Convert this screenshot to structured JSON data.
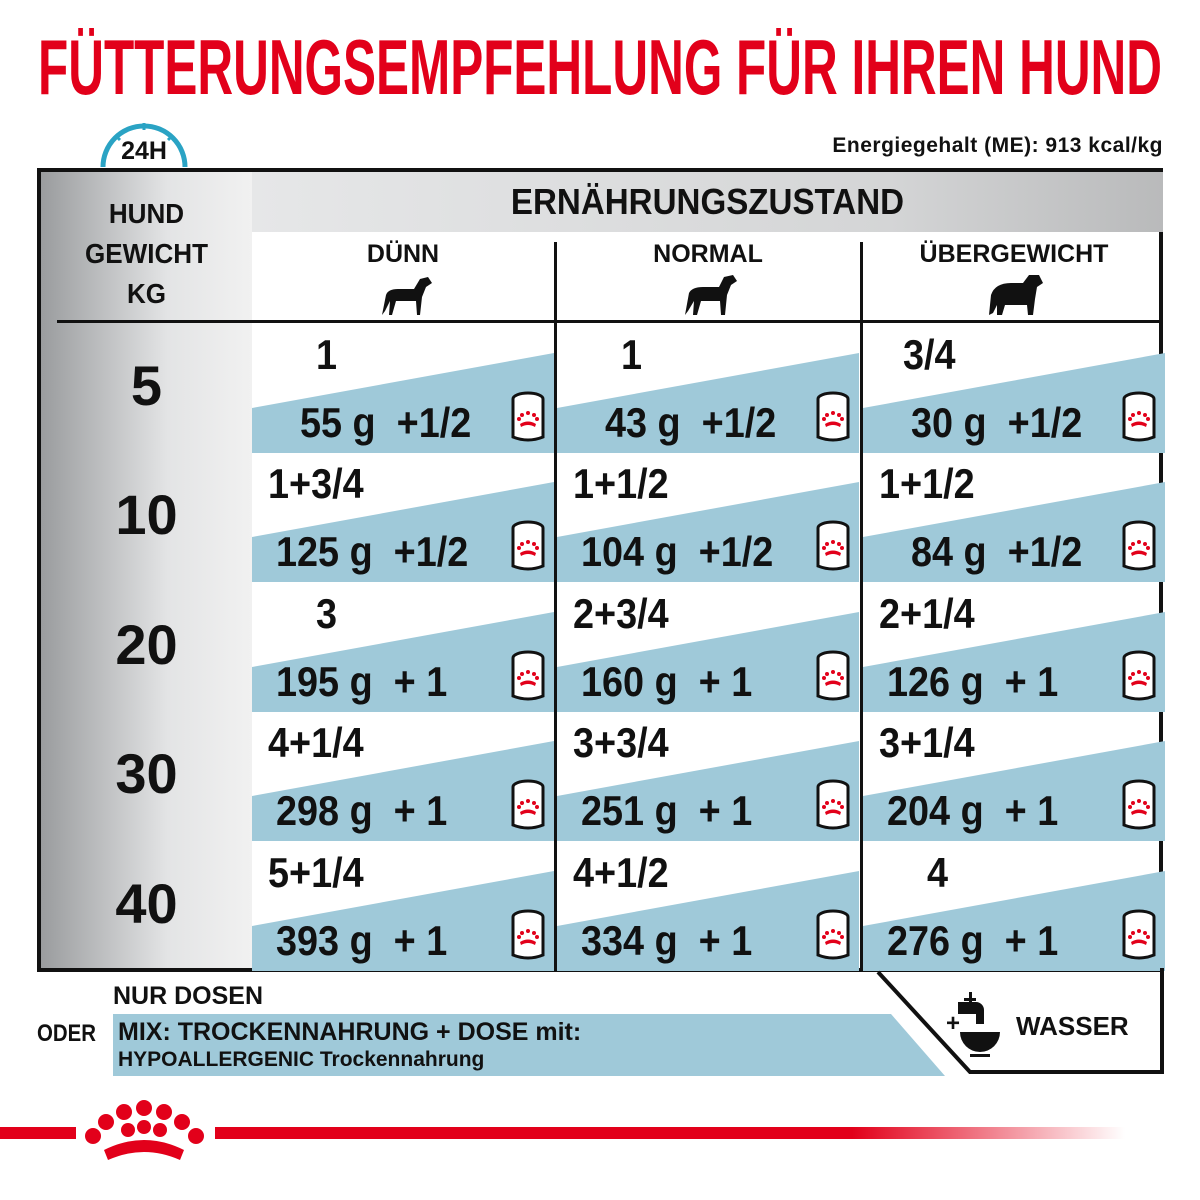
{
  "title": "FÜTTERUNGSEMPFEHLUNG FÜR IHREN HUND",
  "clock_label": "24H",
  "energy": "Energiegehalt (ME): 913 kcal/kg",
  "table": {
    "left_header": [
      "HUND",
      "GEWICHT",
      "KG"
    ],
    "group_header": "ERNÄHRUNGSZUSTAND",
    "columns": [
      "DÜNN",
      "NORMAL",
      "ÜBERGEWICHT"
    ],
    "rows": [
      {
        "kg": "5",
        "cells": [
          {
            "dry": "1",
            "wet": "55 g",
            "cans": "+1/2"
          },
          {
            "dry": "1",
            "wet": "43 g",
            "cans": "+1/2"
          },
          {
            "dry": "3/4",
            "wet": "30 g",
            "cans": "+1/2"
          }
        ]
      },
      {
        "kg": "10",
        "cells": [
          {
            "dry": "1+3/4",
            "wet": "125 g",
            "cans": "+1/2"
          },
          {
            "dry": "1+1/2",
            "wet": "104 g",
            "cans": "+1/2"
          },
          {
            "dry": "1+1/2",
            "wet": "84 g",
            "cans": "+1/2"
          }
        ]
      },
      {
        "kg": "20",
        "cells": [
          {
            "dry": "3",
            "wet": "195 g",
            "cans": "+ 1"
          },
          {
            "dry": "2+3/4",
            "wet": "160 g",
            "cans": "+ 1"
          },
          {
            "dry": "2+1/4",
            "wet": "126 g",
            "cans": "+ 1"
          }
        ]
      },
      {
        "kg": "30",
        "cells": [
          {
            "dry": "4+1/4",
            "wet": "298 g",
            "cans": "+ 1"
          },
          {
            "dry": "3+3/4",
            "wet": "251 g",
            "cans": "+ 1"
          },
          {
            "dry": "3+1/4",
            "wet": "204 g",
            "cans": "+ 1"
          }
        ]
      },
      {
        "kg": "40",
        "cells": [
          {
            "dry": "5+1/4",
            "wet": "393 g",
            "cans": "+ 1"
          },
          {
            "dry": "4+1/2",
            "wet": "334 g",
            "cans": "+ 1"
          },
          {
            "dry": "4",
            "wet": "276 g",
            "cans": "+ 1"
          }
        ]
      }
    ]
  },
  "footer": {
    "only_cans": "NUR DOSEN",
    "or": "ODER",
    "mix_line1": "MIX: TROCKENNAHRUNG + DOSE mit:",
    "mix_line2": "HYPOALLERGENIC Trockennahrung",
    "water_plus": "+",
    "water": "WASSER"
  },
  "colors": {
    "brand_red": "#e2001a",
    "band_blue": "#9fc9d9",
    "clock_blue": "#2aa3c4"
  },
  "icons": [
    "clock-24h-icon",
    "dog-thin-icon",
    "dog-normal-icon",
    "dog-overweight-icon",
    "can-icon",
    "water-tap-bowl-icon",
    "royal-canin-crown-logo"
  ]
}
